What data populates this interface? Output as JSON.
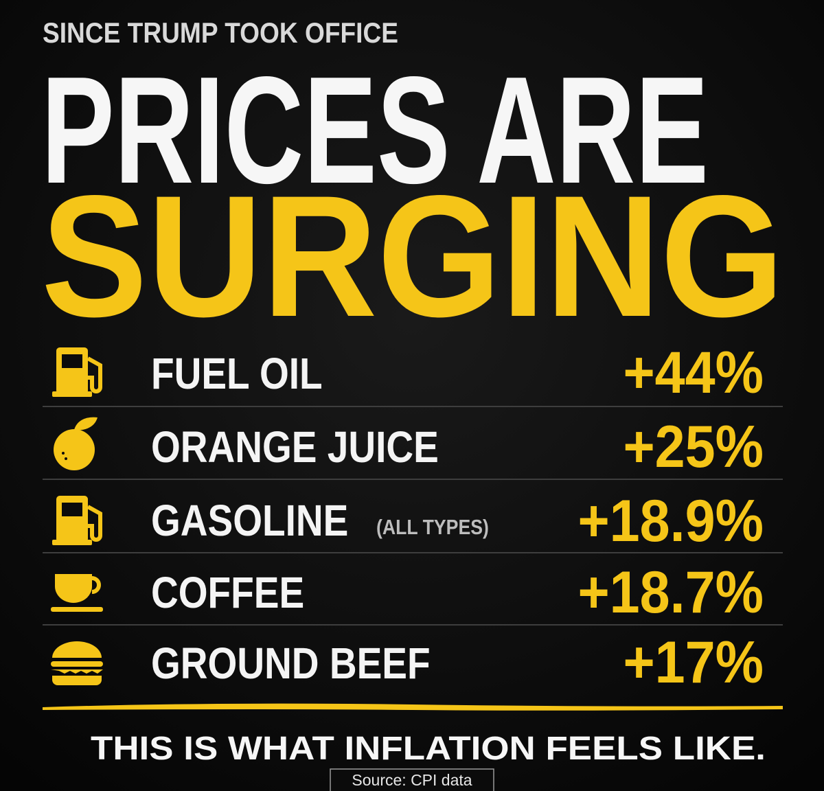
{
  "header": {
    "kicker": "SINCE TRUMP TOOK OFFICE",
    "title_line1": "PRICES ARE",
    "title_line2": "SURGING"
  },
  "items": [
    {
      "label": "FUEL OIL",
      "change": "+44%"
    },
    {
      "label": "ORANGE JUICE",
      "change": "+25%"
    },
    {
      "label": "GASOLINE",
      "note": "(ALL TYPES)",
      "change": "+18.9%"
    },
    {
      "label": "COFFEE",
      "change": "+18.7%"
    },
    {
      "label": "GROUND BEEF",
      "change": "+17%"
    }
  ],
  "footer": {
    "tagline": "THIS IS WHAT INFLATION FEELS LIKE.",
    "source": "Source: CPI data"
  }
}
